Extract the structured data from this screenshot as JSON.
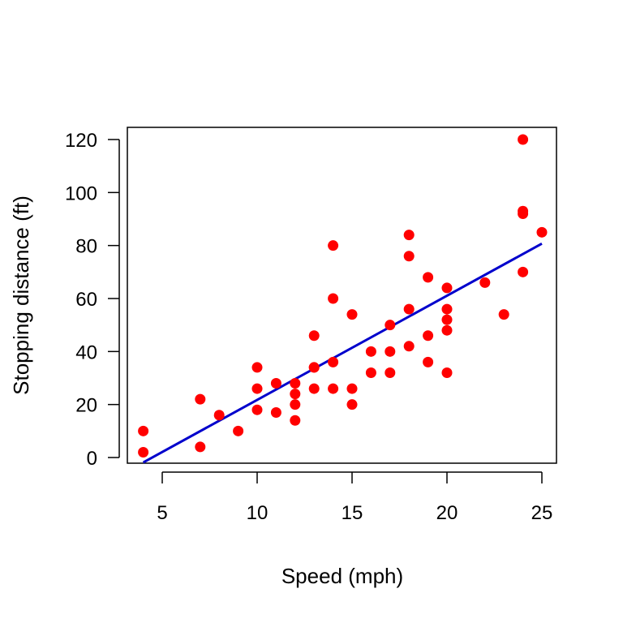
{
  "chart_data": {
    "type": "scatter",
    "title": "",
    "xlabel": "Speed (mph)",
    "ylabel": "Stopping distance (ft)",
    "xlim": [
      4,
      25
    ],
    "ylim": [
      0,
      120
    ],
    "xticks": [
      5,
      10,
      15,
      20,
      25
    ],
    "yticks": [
      0,
      20,
      40,
      60,
      80,
      100,
      120
    ],
    "grid": false,
    "legend": "none",
    "point_color": "#ff0000",
    "line_color": "#0000cc",
    "points": [
      [
        4,
        2
      ],
      [
        4,
        10
      ],
      [
        7,
        4
      ],
      [
        7,
        22
      ],
      [
        8,
        16
      ],
      [
        9,
        10
      ],
      [
        10,
        18
      ],
      [
        10,
        26
      ],
      [
        10,
        34
      ],
      [
        11,
        17
      ],
      [
        11,
        28
      ],
      [
        12,
        14
      ],
      [
        12,
        20
      ],
      [
        12,
        24
      ],
      [
        12,
        28
      ],
      [
        13,
        26
      ],
      [
        13,
        34
      ],
      [
        13,
        34
      ],
      [
        13,
        46
      ],
      [
        14,
        26
      ],
      [
        14,
        36
      ],
      [
        14,
        60
      ],
      [
        14,
        80
      ],
      [
        15,
        20
      ],
      [
        15,
        26
      ],
      [
        15,
        54
      ],
      [
        16,
        32
      ],
      [
        16,
        40
      ],
      [
        17,
        32
      ],
      [
        17,
        40
      ],
      [
        17,
        50
      ],
      [
        18,
        42
      ],
      [
        18,
        56
      ],
      [
        18,
        76
      ],
      [
        18,
        84
      ],
      [
        19,
        36
      ],
      [
        19,
        46
      ],
      [
        19,
        68
      ],
      [
        20,
        32
      ],
      [
        20,
        48
      ],
      [
        20,
        52
      ],
      [
        20,
        56
      ],
      [
        20,
        64
      ],
      [
        22,
        66
      ],
      [
        23,
        54
      ],
      [
        24,
        70
      ],
      [
        24,
        92
      ],
      [
        24,
        93
      ],
      [
        24,
        120
      ],
      [
        25,
        85
      ]
    ],
    "fit_line": {
      "intercept": -17.579,
      "slope": 3.932,
      "x_range": [
        4,
        25
      ]
    }
  }
}
